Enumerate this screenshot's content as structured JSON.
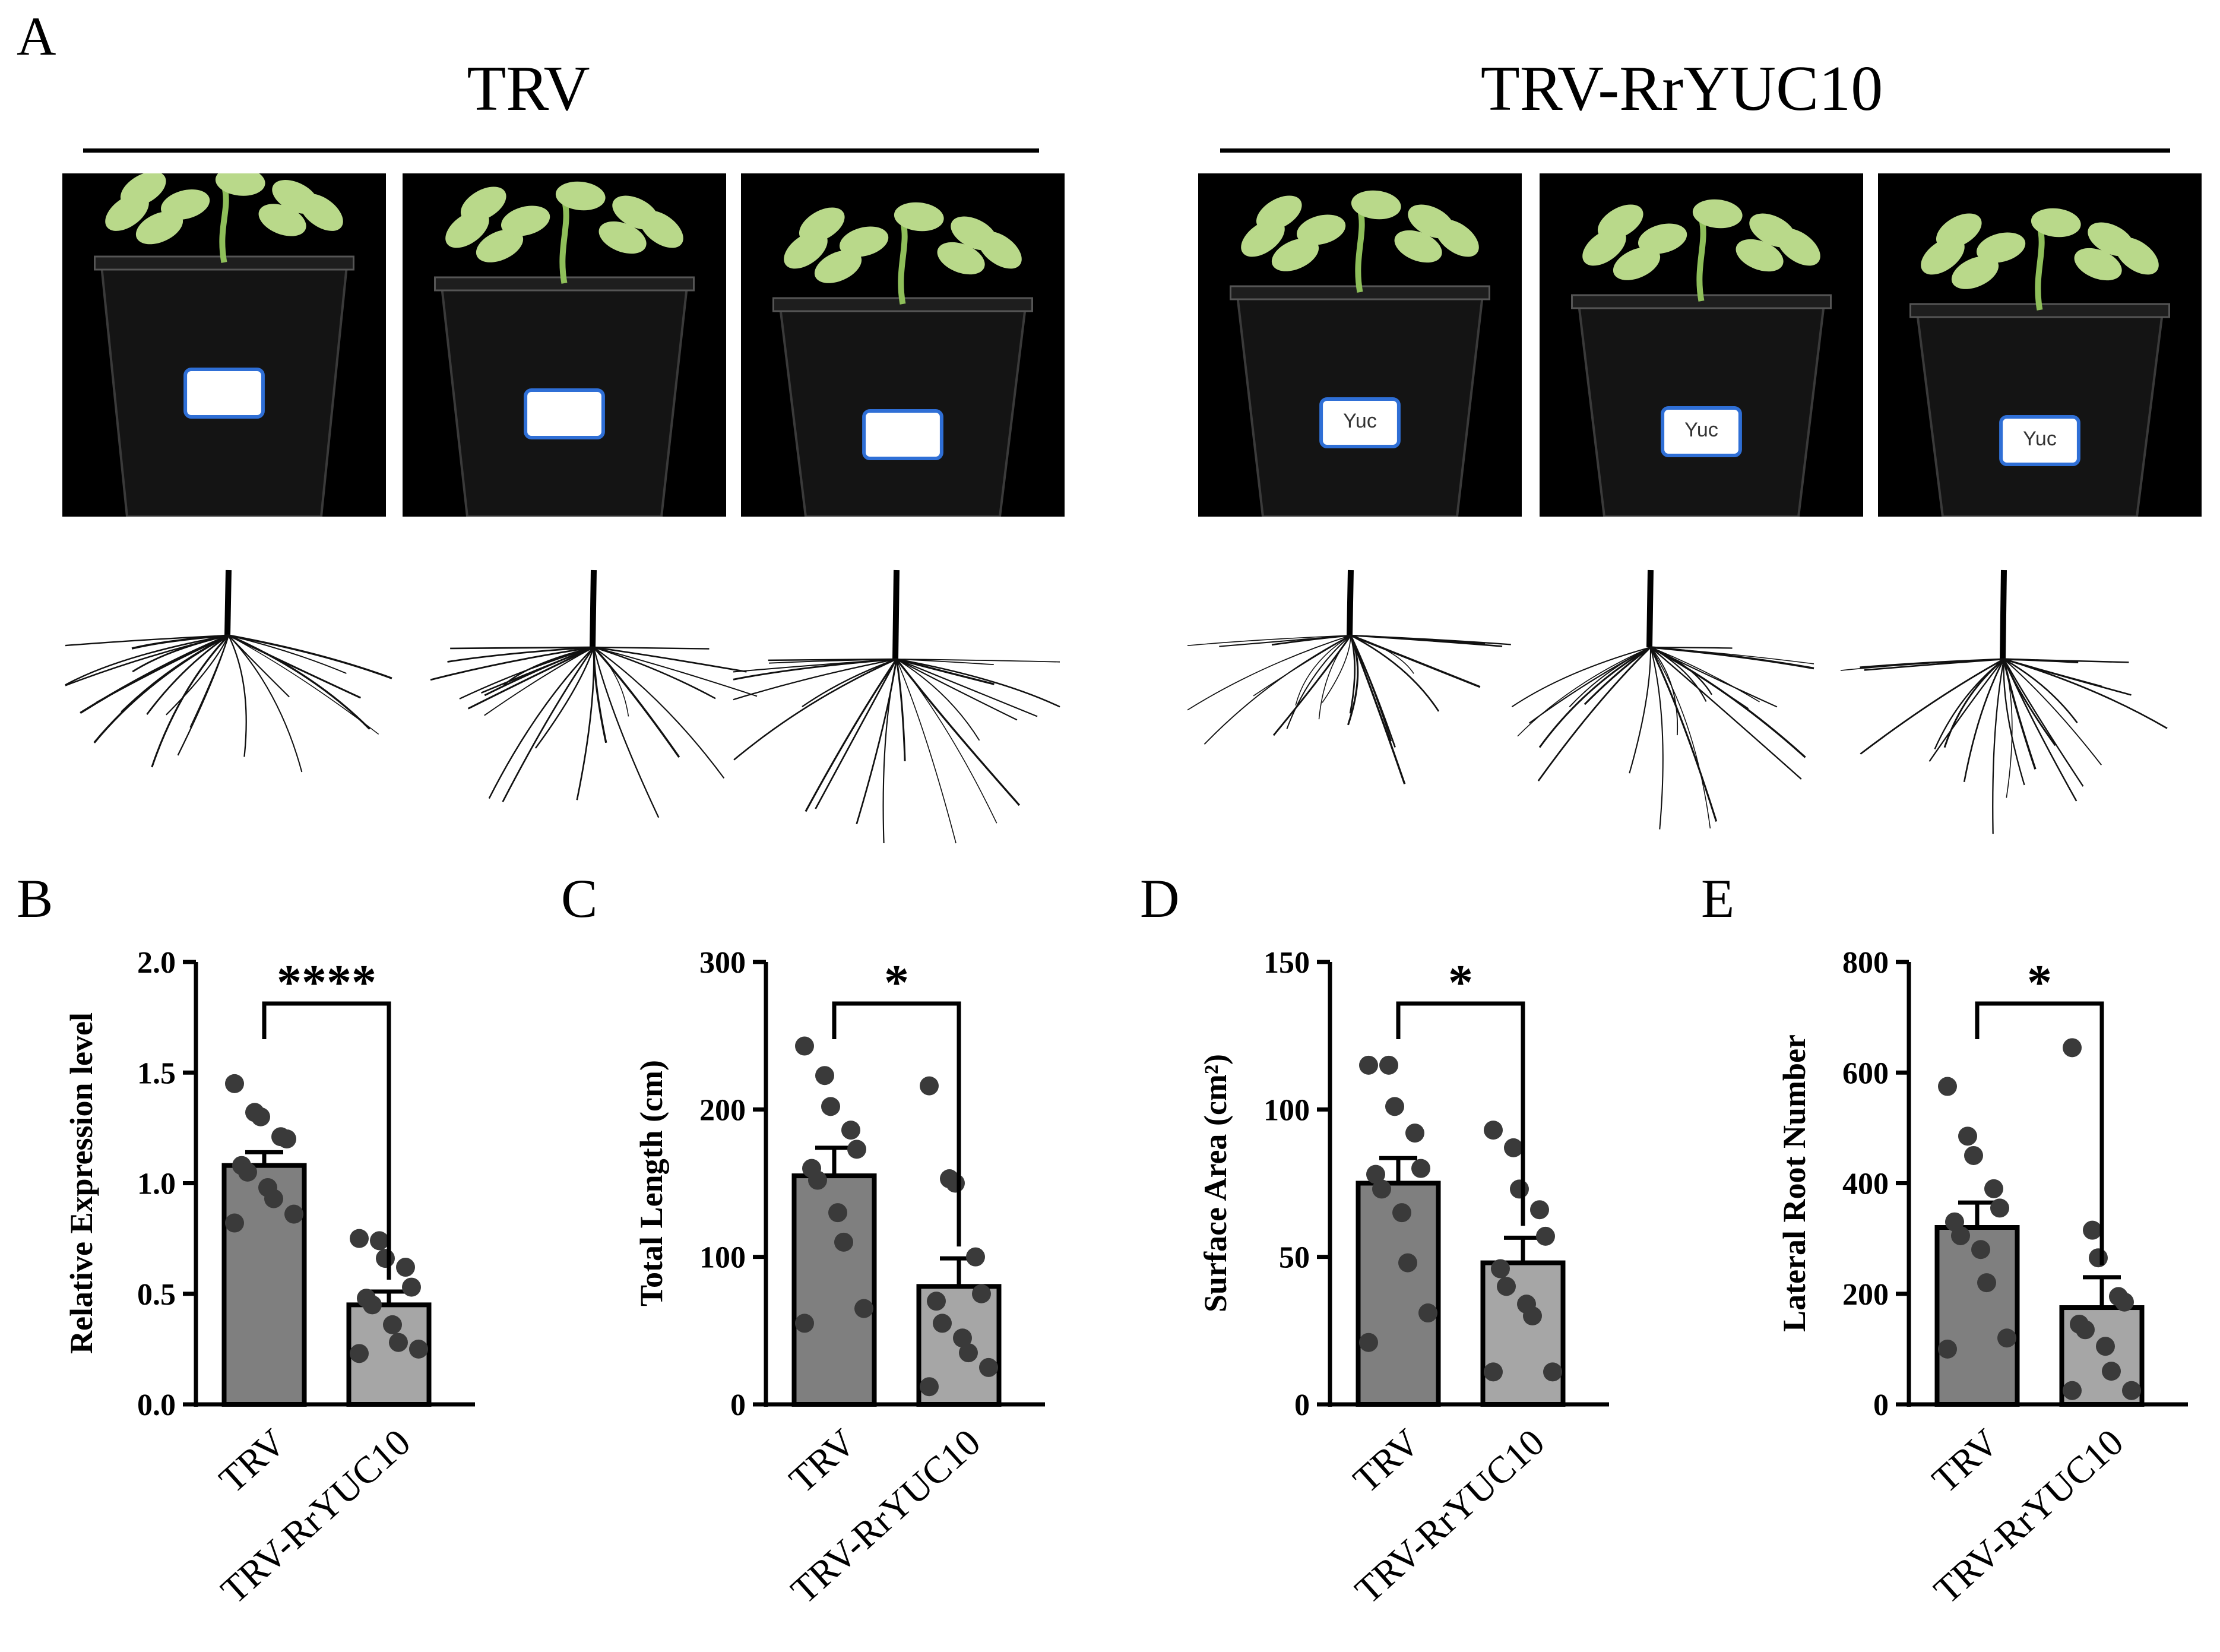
{
  "panel_labels": [
    "A",
    "B",
    "C",
    "D",
    "E"
  ],
  "groups": [
    {
      "title": "TRV"
    },
    {
      "title": "TRV-RrYUC10"
    }
  ],
  "pot_labels": [
    "",
    "",
    "",
    "Yuc",
    "Yuc",
    "Yuc"
  ],
  "colors": {
    "bar_trv": "#7f7f7f",
    "bar_yuc": "#a6a6a6",
    "dot": "#3a3a3a",
    "photo_bg": "#000000",
    "leaf": "#b9d98a",
    "stem": "#8fbf5a",
    "label_border": "#2f6fd6"
  },
  "chart_data": [
    {
      "type": "bar",
      "panel": "B",
      "categories": [
        "TRV",
        "TRV-RrYUC10"
      ],
      "values": [
        1.08,
        0.45
      ],
      "errors": [
        0.06,
        0.06
      ],
      "ylabel": "Relative Expression level",
      "ylim": [
        0,
        2.0
      ],
      "yticks": [
        "0.0",
        "0.5",
        "1.0",
        "1.5",
        "2.0"
      ],
      "significance": "****",
      "points": [
        [
          1.45,
          1.32,
          1.3,
          1.21,
          1.2,
          1.08,
          1.05,
          0.98,
          0.93,
          0.86,
          0.82
        ],
        [
          0.75,
          0.74,
          0.66,
          0.62,
          0.53,
          0.48,
          0.45,
          0.36,
          0.28,
          0.25,
          0.23
        ]
      ]
    },
    {
      "type": "bar",
      "panel": "C",
      "categories": [
        "TRV",
        "TRV-RrYUC10"
      ],
      "values": [
        155,
        80
      ],
      "errors": [
        19,
        19
      ],
      "ylabel": "Total Length (cm)",
      "ylim": [
        0,
        300
      ],
      "yticks": [
        "0",
        "100",
        "200",
        "300"
      ],
      "significance": "*",
      "points": [
        [
          243,
          223,
          202,
          186,
          173,
          160,
          152,
          130,
          110,
          65,
          55
        ],
        [
          216,
          153,
          150,
          100,
          75,
          70,
          55,
          45,
          35,
          25,
          12
        ]
      ]
    },
    {
      "type": "bar",
      "panel": "D",
      "categories": [
        "TRV",
        "TRV-RrYUC10"
      ],
      "values": [
        75,
        48
      ],
      "errors": [
        8.5,
        8.5
      ],
      "ylabel": "Surface Area (cm²)",
      "ylim": [
        0,
        150
      ],
      "yticks": [
        "0",
        "50",
        "100",
        "150"
      ],
      "significance": "*",
      "points": [
        [
          115,
          115,
          101,
          92,
          80,
          78,
          73,
          65,
          48,
          31,
          21
        ],
        [
          93,
          87,
          73,
          66,
          57,
          46,
          40,
          34,
          30,
          11,
          11
        ]
      ]
    },
    {
      "type": "bar",
      "panel": "E",
      "categories": [
        "TRV",
        "TRV-RrYUC10"
      ],
      "values": [
        320,
        175
      ],
      "errors": [
        45,
        55
      ],
      "ylabel": "Lateral Root Number",
      "ylim": [
        0,
        800
      ],
      "yticks": [
        "0",
        "200",
        "400",
        "600",
        "800"
      ],
      "significance": "*",
      "points": [
        [
          575,
          485,
          450,
          390,
          355,
          330,
          305,
          280,
          220,
          120,
          100
        ],
        [
          645,
          315,
          265,
          195,
          185,
          145,
          135,
          105,
          60,
          25,
          25
        ]
      ]
    }
  ]
}
